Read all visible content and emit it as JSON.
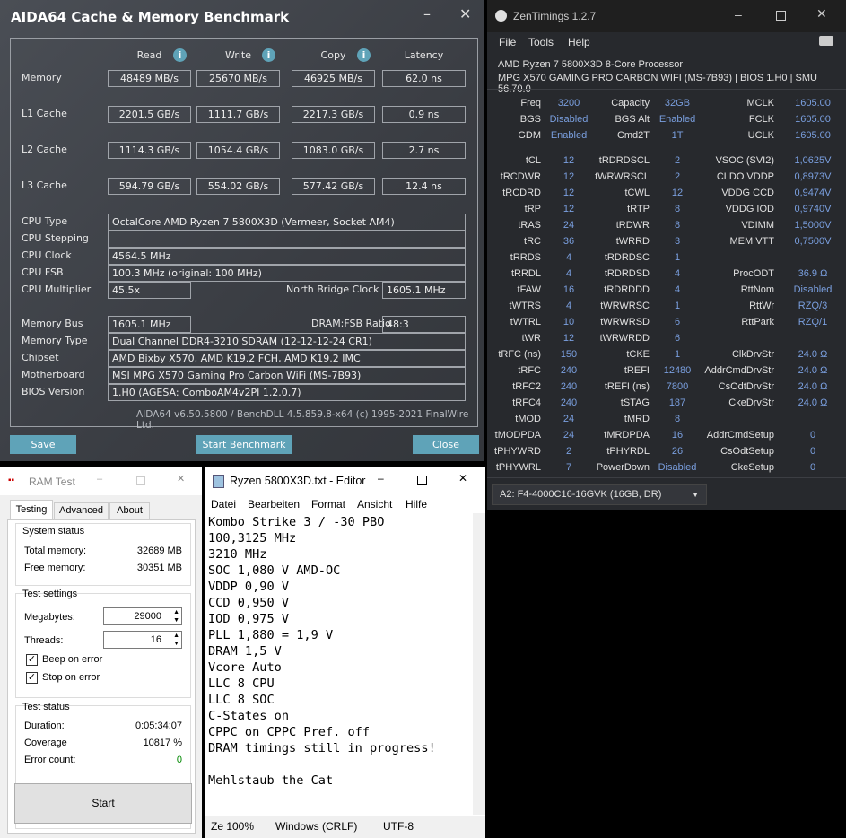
{
  "aida": {
    "title": "AIDA64 Cache & Memory Benchmark",
    "headers": [
      "Read",
      "Write",
      "Copy",
      "Latency"
    ],
    "bench": [
      {
        "label": "Memory",
        "values": [
          "48489 MB/s",
          "25670 MB/s",
          "46925 MB/s",
          "62.0 ns"
        ]
      },
      {
        "label": "L1 Cache",
        "values": [
          "2201.5 GB/s",
          "1111.7 GB/s",
          "2217.3 GB/s",
          "0.9 ns"
        ]
      },
      {
        "label": "L2 Cache",
        "values": [
          "1114.3 GB/s",
          "1054.4 GB/s",
          "1083.0 GB/s",
          "2.7 ns"
        ]
      },
      {
        "label": "L3 Cache",
        "values": [
          "594.79 GB/s",
          "554.02 GB/s",
          "577.42 GB/s",
          "12.4 ns"
        ]
      }
    ],
    "cpu_type_label": "CPU Type",
    "cpu_type": "OctalCore AMD Ryzen 7 5800X3D  (Vermeer, Socket AM4)",
    "cpu_stepping_label": "CPU Stepping",
    "cpu_stepping": "",
    "cpu_clock_label": "CPU Clock",
    "cpu_clock": "4564.5 MHz",
    "cpu_fsb_label": "CPU FSB",
    "cpu_fsb": "100.3 MHz  (original: 100 MHz)",
    "cpu_mult_label": "CPU Multiplier",
    "cpu_mult": "45.5x",
    "nb_clock_label": "North Bridge Clock",
    "nb_clock": "1605.1 MHz",
    "mem_bus_label": "Memory Bus",
    "mem_bus": "1605.1 MHz",
    "dram_ratio_label": "DRAM:FSB Ratio",
    "dram_ratio": "48:3",
    "mem_type_label": "Memory Type",
    "mem_type": "Dual Channel DDR4-3210 SDRAM  (12-12-12-24 CR1)",
    "chipset_label": "Chipset",
    "chipset": "AMD Bixby X570, AMD K19.2 FCH, AMD K19.2 IMC",
    "mobo_label": "Motherboard",
    "mobo": "MSI MPG X570 Gaming Pro Carbon WiFi (MS-7B93)",
    "bios_label": "BIOS Version",
    "bios": "1.H0  (AGESA: ComboAM4v2PI 1.2.0.7)",
    "footer": "AIDA64 v6.50.5800 / BenchDLL 4.5.859.8-x64  (c) 1995-2021 FinalWire Ltd.",
    "save": "Save",
    "start": "Start Benchmark",
    "close": "Close",
    "accent": "#5fa3b8"
  },
  "zen": {
    "title": "ZenTimings 1.2.7",
    "menu": [
      "File",
      "Tools",
      "Help"
    ],
    "cpu": "AMD Ryzen 7 5800X3D 8-Core Processor",
    "board": "MPG X570 GAMING PRO CARBON WIFI (MS-7B93) | BIOS 1.H0 | SMU 56.70.0",
    "top": [
      [
        [
          "Freq",
          "3200"
        ],
        [
          "Capacity",
          "32GB"
        ],
        [
          "MCLK",
          "1605.00"
        ]
      ],
      [
        [
          "BGS",
          "Disabled"
        ],
        [
          "BGS Alt",
          "Enabled"
        ],
        [
          "FCLK",
          "1605.00"
        ]
      ],
      [
        [
          "GDM",
          "Enabled"
        ],
        [
          "Cmd2T",
          "1T"
        ],
        [
          "UCLK",
          "1605.00"
        ]
      ]
    ],
    "rows": [
      [
        [
          "tCL",
          "12"
        ],
        [
          "tRDRDSCL",
          "2"
        ],
        [
          "VSOC (SVI2)",
          "1,0625V"
        ]
      ],
      [
        [
          "tRCDWR",
          "12"
        ],
        [
          "tWRWRSCL",
          "2"
        ],
        [
          "CLDO VDDP",
          "0,8973V"
        ]
      ],
      [
        [
          "tRCDRD",
          "12"
        ],
        [
          "tCWL",
          "12"
        ],
        [
          "VDDG CCD",
          "0,9474V"
        ]
      ],
      [
        [
          "tRP",
          "12"
        ],
        [
          "tRTP",
          "8"
        ],
        [
          "VDDG IOD",
          "0,9740V"
        ]
      ],
      [
        [
          "tRAS",
          "24"
        ],
        [
          "tRDWR",
          "8"
        ],
        [
          "VDIMM",
          "1,5000V"
        ]
      ],
      [
        [
          "tRC",
          "36"
        ],
        [
          "tWRRD",
          "3"
        ],
        [
          "MEM VTT",
          "0,7500V"
        ]
      ],
      [
        [
          "tRRDS",
          "4"
        ],
        [
          "tRDRDSC",
          "1"
        ],
        [
          "",
          ""
        ]
      ],
      [
        [
          "tRRDL",
          "4"
        ],
        [
          "tRDRDSD",
          "4"
        ],
        [
          "ProcODT",
          "36.9 Ω"
        ]
      ],
      [
        [
          "tFAW",
          "16"
        ],
        [
          "tRDRDDD",
          "4"
        ],
        [
          "RttNom",
          "Disabled"
        ]
      ],
      [
        [
          "tWTRS",
          "4"
        ],
        [
          "tWRWRSC",
          "1"
        ],
        [
          "RttWr",
          "RZQ/3"
        ]
      ],
      [
        [
          "tWTRL",
          "10"
        ],
        [
          "tWRWRSD",
          "6"
        ],
        [
          "RttPark",
          "RZQ/1"
        ]
      ],
      [
        [
          "tWR",
          "12"
        ],
        [
          "tWRWRDD",
          "6"
        ],
        [
          "",
          ""
        ]
      ],
      [
        [
          "tRFC (ns)",
          "150"
        ],
        [
          "tCKE",
          "1"
        ],
        [
          "ClkDrvStr",
          "24.0 Ω"
        ]
      ],
      [
        [
          "tRFC",
          "240"
        ],
        [
          "tREFI",
          "12480"
        ],
        [
          "AddrCmdDrvStr",
          "24.0 Ω"
        ]
      ],
      [
        [
          "tRFC2",
          "240"
        ],
        [
          "tREFI (ns)",
          "7800"
        ],
        [
          "CsOdtDrvStr",
          "24.0 Ω"
        ]
      ],
      [
        [
          "tRFC4",
          "240"
        ],
        [
          "tSTAG",
          "187"
        ],
        [
          "CkeDrvStr",
          "24.0 Ω"
        ]
      ],
      [
        [
          "tMOD",
          "24"
        ],
        [
          "tMRD",
          "8"
        ],
        [
          "",
          ""
        ]
      ],
      [
        [
          "tMODPDA",
          "24"
        ],
        [
          "tMRDPDA",
          "16"
        ],
        [
          "AddrCmdSetup",
          "0"
        ]
      ],
      [
        [
          "tPHYWRD",
          "2"
        ],
        [
          "tPHYRDL",
          "26"
        ],
        [
          "CsOdtSetup",
          "0"
        ]
      ],
      [
        [
          "tPHYWRL",
          "7"
        ],
        [
          "PowerDown",
          "Disabled"
        ],
        [
          "CkeSetup",
          "0"
        ]
      ]
    ],
    "module": "A2: F4-4000C16-16GVK (16GB, DR)",
    "value_color": "#7a9fdf"
  },
  "ram": {
    "title": "RAM Test",
    "tabs": [
      "Testing",
      "Advanced",
      "About"
    ],
    "system_status": "System status",
    "total_label": "Total memory:",
    "total": "32689 MB",
    "free_label": "Free memory:",
    "free": "30351 MB",
    "settings": "Test settings",
    "mb_label": "Megabytes:",
    "mb": "29000",
    "threads_label": "Threads:",
    "threads": "16",
    "beep": "Beep on error",
    "stop": "Stop on error",
    "test_status": "Test status",
    "duration_label": "Duration:",
    "duration": "0:05:34:07",
    "coverage_label": "Coverage",
    "coverage": "10817 %",
    "errors_label": "Error count:",
    "errors": "0",
    "start": "Start"
  },
  "editor": {
    "title": "Ryzen 5800X3D.txt - Editor",
    "menu": [
      "Datei",
      "Bearbeiten",
      "Format",
      "Ansicht",
      "Hilfe"
    ],
    "text": "Kombo Strike 3 / -30 PBO\n100,3125 MHz\n3210 MHz\nSOC 1,080 V AMD-OC\nVDDP 0,90 V\nCCD 0,950 V\nIOD 0,975 V\nPLL 1,880 = 1,9 V\nDRAM 1,5 V\nVcore Auto\nLLC 8 CPU\nLLC 8 SOC\nC-States on\nCPPC on CPPC Pref. off\nDRAM timings still in progress!\n\nMehlstaub the Cat",
    "zoom": "Ze  100%",
    "eol": "Windows (CRLF)",
    "enc": "UTF-8"
  }
}
